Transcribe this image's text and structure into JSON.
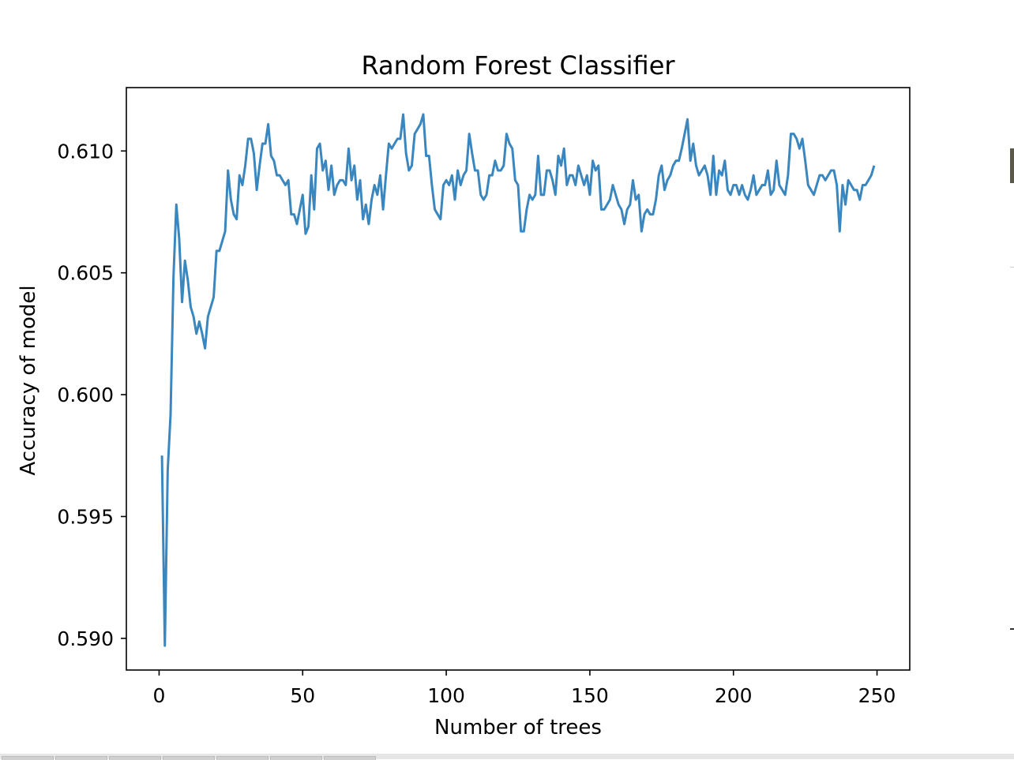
{
  "chart_data": {
    "type": "line",
    "title": "Random Forest Classifier",
    "xlabel": "Number of trees",
    "ylabel": "Accuracy of model",
    "xlim": [
      -11.4,
      261.4
    ],
    "ylim": [
      0.5887,
      0.6126
    ],
    "xticks": [
      0,
      50,
      100,
      150,
      200,
      250
    ],
    "xtick_labels": [
      "0",
      "50",
      "100",
      "150",
      "200",
      "250"
    ],
    "yticks": [
      0.59,
      0.595,
      0.6,
      0.605,
      0.61
    ],
    "ytick_labels": [
      "0.590",
      "0.595",
      "0.600",
      "0.605",
      "0.610"
    ],
    "grid": false,
    "series": [
      {
        "color": "#3a86bf",
        "x": [
          1,
          2,
          3,
          4,
          5,
          6,
          7,
          8,
          9,
          10,
          11,
          12,
          13,
          14,
          15,
          16,
          17,
          18,
          19,
          20,
          21,
          22,
          23,
          24,
          25,
          26,
          27,
          28,
          29,
          30,
          31,
          32,
          33,
          34,
          35,
          36,
          37,
          38,
          39,
          40,
          41,
          42,
          43,
          44,
          45,
          46,
          47,
          48,
          49,
          50,
          51,
          52,
          53,
          54,
          55,
          56,
          57,
          58,
          59,
          60,
          61,
          62,
          63,
          64,
          65,
          66,
          67,
          68,
          69,
          70,
          71,
          72,
          73,
          74,
          75,
          76,
          77,
          78,
          79,
          80,
          81,
          82,
          83,
          84,
          85,
          86,
          87,
          88,
          89,
          90,
          91,
          92,
          93,
          94,
          95,
          96,
          97,
          98,
          99,
          100,
          101,
          102,
          103,
          104,
          105,
          106,
          107,
          108,
          109,
          110,
          111,
          112,
          113,
          114,
          115,
          116,
          117,
          118,
          119,
          120,
          121,
          122,
          123,
          124,
          125,
          126,
          127,
          128,
          129,
          130,
          131,
          132,
          133,
          134,
          135,
          136,
          137,
          138,
          139,
          140,
          141,
          142,
          143,
          144,
          145,
          146,
          147,
          148,
          149,
          150,
          151,
          152,
          153,
          154,
          155,
          156,
          157,
          158,
          159,
          160,
          161,
          162,
          163,
          164,
          165,
          166,
          167,
          168,
          169,
          170,
          171,
          172,
          173,
          174,
          175,
          176,
          177,
          178,
          179,
          180,
          181,
          182,
          183,
          184,
          185,
          186,
          187,
          188,
          189,
          190,
          191,
          192,
          193,
          194,
          195,
          196,
          197,
          198,
          199,
          200,
          201,
          202,
          203,
          204,
          205,
          206,
          207,
          208,
          209,
          210,
          211,
          212,
          213,
          214,
          215,
          216,
          217,
          218,
          219,
          220,
          221,
          222,
          223,
          224,
          225,
          226,
          227,
          228,
          229,
          230,
          231,
          232,
          233,
          234,
          235,
          236,
          237,
          238,
          239,
          240,
          241,
          242,
          243,
          244,
          245,
          246,
          247,
          248,
          249
        ],
        "y": [
          0.5975,
          0.5897,
          0.5969,
          0.5992,
          0.6048,
          0.6078,
          0.6064,
          0.6038,
          0.6055,
          0.6047,
          0.6036,
          0.6032,
          0.6025,
          0.603,
          0.6025,
          0.6019,
          0.6032,
          0.6036,
          0.604,
          0.6059,
          0.6059,
          0.6063,
          0.6067,
          0.6092,
          0.608,
          0.6074,
          0.6072,
          0.609,
          0.6086,
          0.6094,
          0.6105,
          0.6105,
          0.6099,
          0.6084,
          0.6094,
          0.6103,
          0.6103,
          0.6111,
          0.6098,
          0.6096,
          0.609,
          0.609,
          0.6088,
          0.6086,
          0.6088,
          0.6074,
          0.6074,
          0.607,
          0.6076,
          0.6082,
          0.6066,
          0.6069,
          0.609,
          0.6076,
          0.6101,
          0.6103,
          0.6092,
          0.6096,
          0.6084,
          0.6094,
          0.6082,
          0.6086,
          0.6088,
          0.6088,
          0.6086,
          0.6101,
          0.6088,
          0.6094,
          0.608,
          0.6088,
          0.6072,
          0.6078,
          0.607,
          0.608,
          0.6086,
          0.6082,
          0.609,
          0.6076,
          0.609,
          0.6103,
          0.6101,
          0.6103,
          0.6105,
          0.6105,
          0.6115,
          0.6099,
          0.6092,
          0.6094,
          0.6107,
          0.6109,
          0.6111,
          0.6115,
          0.6098,
          0.6098,
          0.6086,
          0.6076,
          0.6074,
          0.6072,
          0.6086,
          0.6088,
          0.6086,
          0.609,
          0.608,
          0.6092,
          0.6086,
          0.609,
          0.6092,
          0.6107,
          0.6099,
          0.6092,
          0.6092,
          0.6082,
          0.608,
          0.6082,
          0.609,
          0.609,
          0.6096,
          0.6092,
          0.6092,
          0.6094,
          0.6107,
          0.6103,
          0.6101,
          0.6088,
          0.6086,
          0.6067,
          0.6067,
          0.6076,
          0.6082,
          0.608,
          0.6082,
          0.6098,
          0.6082,
          0.6082,
          0.6092,
          0.6092,
          0.6088,
          0.6082,
          0.6098,
          0.6094,
          0.6101,
          0.6086,
          0.609,
          0.609,
          0.6086,
          0.6094,
          0.609,
          0.6086,
          0.609,
          0.6082,
          0.6096,
          0.6092,
          0.6094,
          0.6076,
          0.6076,
          0.6078,
          0.608,
          0.6086,
          0.6082,
          0.6078,
          0.6076,
          0.607,
          0.6076,
          0.6078,
          0.6088,
          0.608,
          0.6082,
          0.6067,
          0.6074,
          0.6076,
          0.6074,
          0.6074,
          0.608,
          0.609,
          0.6094,
          0.6084,
          0.6088,
          0.609,
          0.6094,
          0.6096,
          0.6096,
          0.6101,
          0.6107,
          0.6113,
          0.6096,
          0.6103,
          0.6094,
          0.609,
          0.6092,
          0.6094,
          0.609,
          0.6082,
          0.6098,
          0.6082,
          0.6092,
          0.609,
          0.6096,
          0.6084,
          0.6082,
          0.6086,
          0.6086,
          0.6082,
          0.6086,
          0.6082,
          0.608,
          0.6084,
          0.609,
          0.6082,
          0.6084,
          0.6086,
          0.6086,
          0.6092,
          0.6082,
          0.6084,
          0.6096,
          0.6086,
          0.6084,
          0.6082,
          0.609,
          0.6107,
          0.6107,
          0.6105,
          0.6101,
          0.6105,
          0.6096,
          0.6086,
          0.6084,
          0.6082,
          0.6086,
          0.609,
          0.609,
          0.6088,
          0.609,
          0.6092,
          0.6092,
          0.6086,
          0.6067,
          0.6086,
          0.6078,
          0.6088,
          0.6086,
          0.6084,
          0.6084,
          0.608,
          0.6086,
          0.6086,
          0.6088,
          0.609,
          0.6094
        ]
      }
    ]
  }
}
